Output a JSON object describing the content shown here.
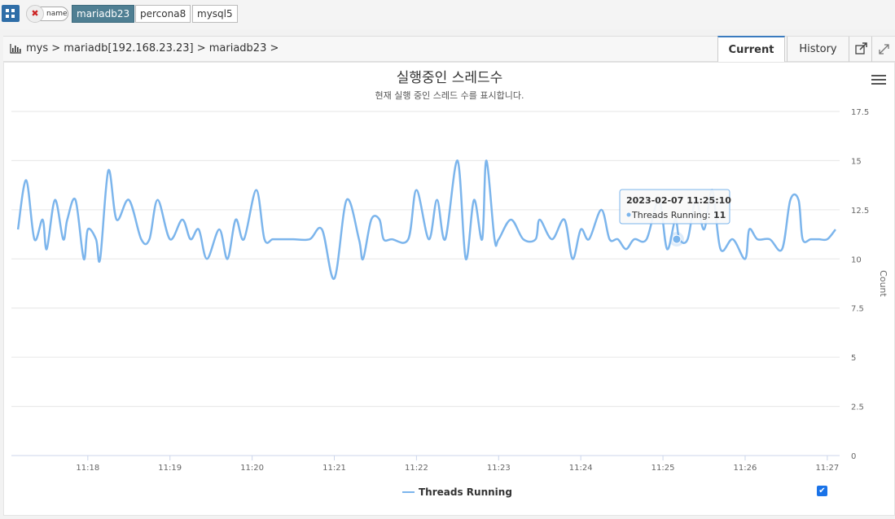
{
  "toolbar": {
    "name_filter": "name",
    "close_symbol": "✖",
    "tags": [
      "mariadb23",
      "percona8",
      "mysql5"
    ],
    "active_tag": "mariadb23"
  },
  "breadcrumb": "mys > mariadb[192.168.23.23] > mariadb23 >",
  "tabs": {
    "current": "Current",
    "history": "History"
  },
  "icons": {
    "grid": "grid-icon",
    "breadcrumb": "bar-chart-icon",
    "popout": "external-link-icon",
    "expand": "expand-icon",
    "menu": "hamburger-icon"
  },
  "colors": {
    "series": "#7cb5ec",
    "accent": "#2f6ea8",
    "active_tag": "#4f7f93"
  },
  "tooltip": {
    "time": "2023-02-07 11:25:10",
    "label": "Threads Running:",
    "value": "11"
  },
  "chart_data": {
    "type": "line",
    "title": "실행중인 스레드수",
    "subtitle": "현재 실행 중인 스레드 수를 표시합니다.",
    "ylabel": "Count",
    "ylim": [
      0,
      17.5
    ],
    "yticks": [
      "0",
      "2.5",
      "5",
      "7.5",
      "10",
      "12.5",
      "15",
      "17.5"
    ],
    "xticks": [
      "11:18",
      "11:19",
      "11:20",
      "11:21",
      "11:22",
      "11:23",
      "11:24",
      "11:25",
      "11:26",
      "11:27"
    ],
    "xrange_minutes": [
      17.07,
      27.15
    ],
    "legend": "bottom-center",
    "series": [
      {
        "name": "Threads Running",
        "color": "#7cb5ec",
        "x": [
          17.15,
          17.25,
          17.35,
          17.45,
          17.5,
          17.6,
          17.7,
          17.75,
          17.85,
          17.95,
          18.0,
          18.1,
          18.15,
          18.25,
          18.35,
          18.5,
          18.65,
          18.75,
          18.85,
          19.0,
          19.15,
          19.25,
          19.35,
          19.45,
          19.6,
          19.7,
          19.8,
          19.9,
          20.05,
          20.15,
          20.25,
          20.35,
          20.5,
          20.7,
          20.85,
          21.0,
          21.15,
          21.3,
          21.35,
          21.45,
          21.55,
          21.6,
          21.7,
          21.9,
          22.0,
          22.15,
          22.25,
          22.35,
          22.5,
          22.6,
          22.7,
          22.8,
          22.85,
          22.95,
          23.0,
          23.15,
          23.3,
          23.45,
          23.5,
          23.65,
          23.8,
          23.9,
          24.0,
          24.1,
          24.25,
          24.35,
          24.45,
          24.55,
          24.65,
          24.8,
          24.95,
          25.05,
          25.15,
          25.2,
          25.3,
          25.4,
          25.5,
          25.6,
          25.7,
          25.85,
          26.0,
          26.05,
          26.15,
          26.3,
          26.45,
          26.55,
          26.65,
          26.7,
          26.8,
          26.9,
          27.0,
          27.1
        ],
        "values": [
          11.5,
          14,
          11,
          12,
          10.5,
          13,
          11,
          12,
          13,
          10,
          11.5,
          11,
          10,
          14.5,
          12,
          13,
          11,
          11,
          13,
          11,
          12,
          11,
          11.5,
          10,
          11.5,
          10,
          12,
          11,
          13.5,
          11,
          11,
          11,
          11,
          11,
          11.5,
          9,
          13,
          11,
          10,
          12,
          12,
          11,
          11,
          11,
          13.5,
          11,
          13,
          11,
          15,
          10,
          13,
          11,
          15,
          11,
          11,
          12,
          11,
          11,
          12,
          11,
          12,
          10,
          11.5,
          11,
          12.5,
          11,
          11,
          10.5,
          11,
          11,
          13,
          10.5,
          12,
          11,
          11,
          13,
          11.5,
          13.5,
          10.5,
          11,
          10,
          11.5,
          11,
          11,
          10.5,
          13,
          13,
          11,
          11,
          11,
          11,
          11.5
        ]
      }
    ]
  }
}
